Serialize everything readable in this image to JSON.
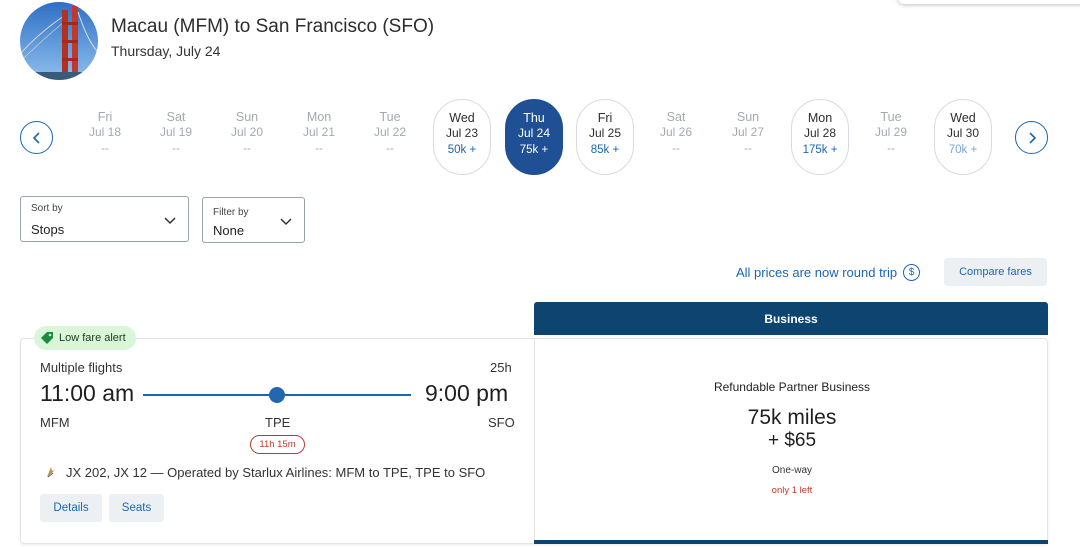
{
  "header": {
    "route": "Macau (MFM) to San Francisco (SFO)",
    "date": "Thursday, July 24"
  },
  "calendar": {
    "days": [
      {
        "dow": "Fri",
        "date": "Jul 18",
        "price": "--",
        "status": "na"
      },
      {
        "dow": "Sat",
        "date": "Jul 19",
        "price": "--",
        "status": "na"
      },
      {
        "dow": "Sun",
        "date": "Jul 20",
        "price": "--",
        "status": "na"
      },
      {
        "dow": "Mon",
        "date": "Jul 21",
        "price": "--",
        "status": "na"
      },
      {
        "dow": "Tue",
        "date": "Jul 22",
        "price": "--",
        "status": "na"
      },
      {
        "dow": "Wed",
        "date": "Jul 23",
        "price": "50k +",
        "status": "avail"
      },
      {
        "dow": "Thu",
        "date": "Jul 24",
        "price": "75k +",
        "status": "selected"
      },
      {
        "dow": "Fri",
        "date": "Jul 25",
        "price": "85k +",
        "status": "avail"
      },
      {
        "dow": "Sat",
        "date": "Jul 26",
        "price": "--",
        "status": "na"
      },
      {
        "dow": "Sun",
        "date": "Jul 27",
        "price": "--",
        "status": "na"
      },
      {
        "dow": "Mon",
        "date": "Jul 28",
        "price": "175k +",
        "status": "avail"
      },
      {
        "dow": "Tue",
        "date": "Jul 29",
        "price": "--",
        "status": "na"
      },
      {
        "dow": "Wed",
        "date": "Jul 30",
        "price": "70k +",
        "status": "avail-faded"
      }
    ]
  },
  "sort": {
    "label": "Sort by",
    "value": "Stops"
  },
  "filter": {
    "label": "Filter by",
    "value": "None"
  },
  "notice": {
    "round_trip": "All prices are now round trip",
    "dollar_icon": "$"
  },
  "compare_fares": "Compare fares",
  "cabin_header": "Business",
  "result": {
    "badge": "Low fare alert",
    "type": "Multiple flights",
    "duration": "25h",
    "depart_time": "11:00 am",
    "arrive_time": "9:00 pm",
    "origin": "MFM",
    "stop": "TPE",
    "destination": "SFO",
    "layover": "11h 15m",
    "flights": "JX 202, JX 12 — Operated by Starlux Airlines: MFM to TPE, TPE to SFO",
    "details_label": "Details",
    "seats_label": "Seats"
  },
  "fare": {
    "name": "Refundable Partner Business",
    "miles": "75k miles",
    "tax": "+ $65",
    "way": "One-way",
    "seats_left": "only 1 left"
  },
  "colors": {
    "accent": "#1a66b5",
    "selected_day": "#1f4f95",
    "cabin_header": "#0d4470",
    "low_fare_bg": "#d9f6d9",
    "warning": "#c0392b"
  }
}
